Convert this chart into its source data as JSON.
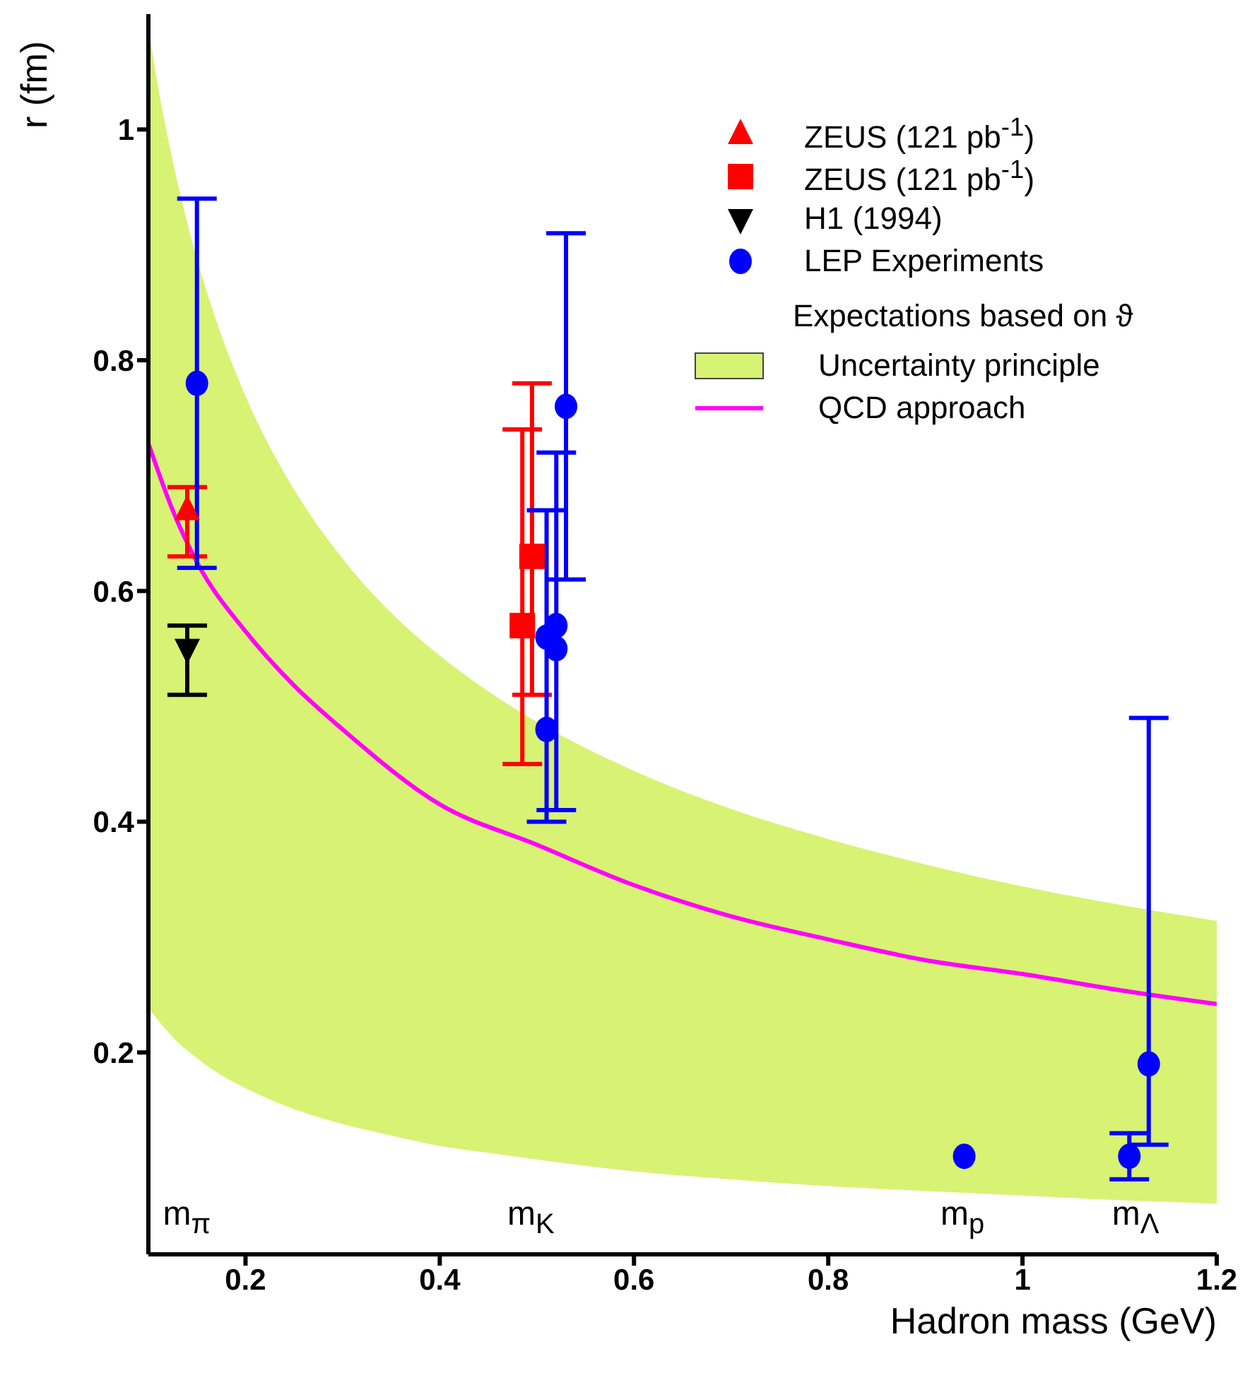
{
  "chart_data": {
    "type": "scatter",
    "xlabel": "Hadron mass (GeV)",
    "ylabel": "r (fm)",
    "xlim": [
      0.1,
      1.2
    ],
    "xticks": [
      0.2,
      0.4,
      0.6,
      0.8,
      1,
      1.2
    ],
    "ylim": [
      0.025,
      1.1
    ],
    "yticks": [
      0.2,
      0.4,
      0.6,
      0.8,
      1
    ],
    "legend": "top right",
    "grid": false,
    "annotations": [
      "Expectations based on ϑ",
      "m$_{π}$",
      "m$_{K}$",
      "m$_{p}$",
      "m$_{Λ}$"
    ],
    "series": [
      {
        "name": "Uncertainty principle",
        "type": "area",
        "color": "#d8f273",
        "x": [
          0.1,
          0.11,
          0.12,
          0.13,
          0.15,
          0.17,
          0.2,
          0.25,
          0.3,
          0.35,
          0.4,
          0.45,
          0.6,
          0.7,
          0.8,
          0.9,
          1.0,
          1.1,
          1.2
        ],
        "values": [
          null,
          null,
          null,
          null,
          null,
          null,
          null,
          null,
          null,
          null,
          null,
          null,
          null,
          null,
          null,
          null,
          null,
          null,
          null
        ],
        "lower": [
          0.239,
          0.228,
          0.218,
          0.209,
          0.195,
          0.183,
          0.169,
          0.151,
          0.138,
          0.128,
          0.119,
          0.113,
          0.097,
          0.09,
          0.084,
          0.08,
          0.076,
          0.072,
          0.069
        ],
        "upper": [
          1.088,
          1.037,
          0.993,
          0.954,
          0.888,
          0.834,
          0.769,
          0.688,
          0.628,
          0.581,
          0.544,
          0.513,
          0.444,
          0.411,
          0.385,
          0.363,
          0.344,
          0.328,
          0.314
        ]
      },
      {
        "name": "QCD approach",
        "type": "line",
        "color": "#ff00ff",
        "marker": "none",
        "line_style": "solid",
        "x": [
          0.1,
          0.125,
          0.15,
          0.2,
          0.25,
          0.3,
          0.4,
          0.5,
          0.6,
          0.7,
          0.8,
          0.9,
          1.0,
          1.1,
          1.2
        ],
        "values": [
          0.728,
          0.67,
          0.625,
          0.565,
          0.518,
          0.48,
          0.415,
          0.38,
          0.345,
          0.318,
          0.298,
          0.28,
          0.268,
          0.254,
          0.242
        ]
      },
      {
        "name": "ZEUS (121 pb$^{-1}$)",
        "color": "#ff0000",
        "marker": "triangle",
        "x": [
          0.14
        ],
        "values": [
          0.67
        ],
        "errors": [
          [
            0.63,
            0.69
          ]
        ]
      },
      {
        "name": "ZEUS (121 pb$^{-1}$)",
        "color": "#ff0000",
        "marker": "square",
        "x": [
          0.485,
          0.495
        ],
        "values": [
          0.57,
          0.63
        ],
        "errors": [
          [
            0.45,
            0.74
          ],
          [
            0.51,
            0.78
          ]
        ]
      },
      {
        "name": "H1 (1994)",
        "color": "#000000",
        "marker": "triangle-down",
        "x": [
          0.14
        ],
        "values": [
          0.55
        ],
        "errors": [
          [
            0.51,
            0.57
          ]
        ]
      },
      {
        "name": "LEP Experiments",
        "color": "#0000ff",
        "marker": "circle",
        "x": [
          0.15,
          0.53,
          0.52,
          0.51,
          0.52,
          0.51,
          0.94,
          1.11,
          1.13
        ],
        "values": [
          0.78,
          0.76,
          0.57,
          0.56,
          0.55,
          0.48,
          0.11,
          0.11,
          0.19
        ],
        "errors": [
          [
            0.62,
            0.94
          ],
          [
            0.61,
            0.91
          ],
          [
            0.41,
            0.72
          ],
          null,
          null,
          [
            0.4,
            0.67
          ],
          null,
          [
            0.09,
            0.13
          ],
          [
            0.12,
            0.49
          ]
        ]
      }
    ]
  }
}
